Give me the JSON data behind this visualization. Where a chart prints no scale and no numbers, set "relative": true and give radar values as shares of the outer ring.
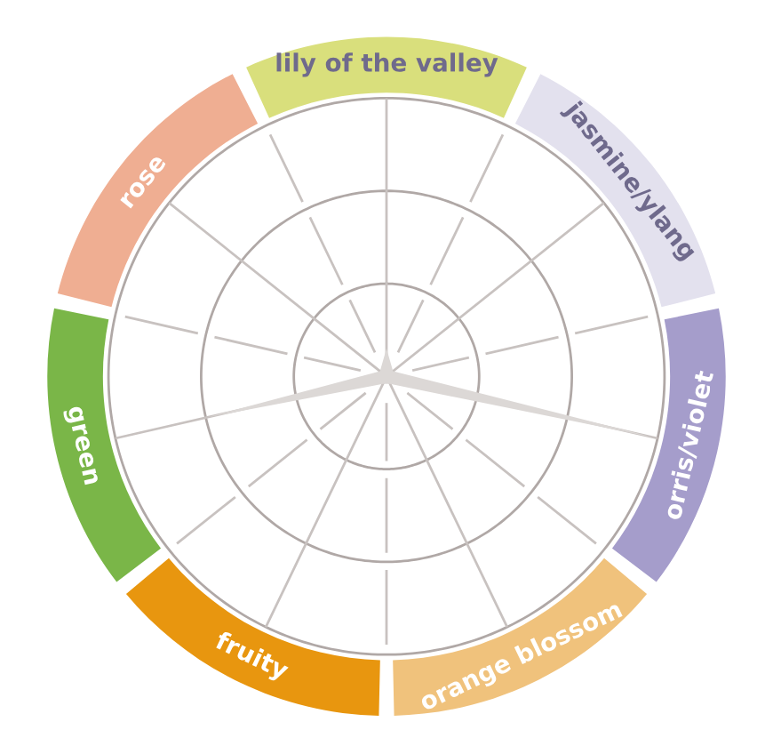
{
  "chart_data": {
    "type": "radar",
    "relative": true,
    "grid": true,
    "legend": false,
    "categories": [
      "lily of the valley",
      "jasmine/ylang",
      "orris/violet",
      "orange blossom",
      "fruity",
      "green",
      "rose"
    ],
    "colors": [
      "#d9df7c",
      "#e3e1ee",
      "#a59dcb",
      "#f0c27c",
      "#e8960f",
      "#7ab648",
      "#efae92"
    ],
    "series": [
      {
        "color": "#dcd8d6",
        "values": [
          0.1,
          0.03,
          0.99,
          0.03,
          0.03,
          0.66,
          0.03
        ]
      }
    ]
  }
}
